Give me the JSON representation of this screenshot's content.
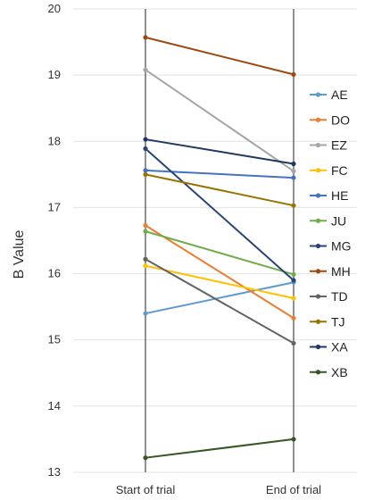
{
  "chart_data": {
    "type": "line",
    "title": "",
    "ylabel": "B Value",
    "xlabel": "",
    "categories": [
      "Start of trial",
      "End of trial"
    ],
    "ylim": [
      13,
      20
    ],
    "yticks": [
      13,
      14,
      15,
      16,
      17,
      18,
      19,
      20
    ],
    "grid": "horizontal",
    "legend_position": "right",
    "series": [
      {
        "name": "AE",
        "color": "#5b9bd5",
        "values": [
          15.4,
          15.87
        ]
      },
      {
        "name": "DO",
        "color": "#ed7d31",
        "values": [
          16.73,
          15.33
        ]
      },
      {
        "name": "EZ",
        "color": "#a5a5a5",
        "values": [
          19.08,
          17.55
        ]
      },
      {
        "name": "FC",
        "color": "#ffc000",
        "values": [
          16.12,
          15.63
        ]
      },
      {
        "name": "HE",
        "color": "#4472c4",
        "values": [
          17.56,
          17.45
        ]
      },
      {
        "name": "JU",
        "color": "#70ad47",
        "values": [
          16.64,
          15.99
        ]
      },
      {
        "name": "MG",
        "color": "#264478",
        "values": [
          17.89,
          15.9
        ]
      },
      {
        "name": "MH",
        "color": "#9e480e",
        "values": [
          19.57,
          19.01
        ]
      },
      {
        "name": "TD",
        "color": "#636363",
        "values": [
          16.22,
          14.95
        ]
      },
      {
        "name": "TJ",
        "color": "#997300",
        "values": [
          17.5,
          17.03
        ]
      },
      {
        "name": "XA",
        "color": "#1f3864",
        "values": [
          18.03,
          17.66
        ]
      },
      {
        "name": "XB",
        "color": "#375623",
        "values": [
          13.22,
          13.5
        ]
      }
    ]
  }
}
